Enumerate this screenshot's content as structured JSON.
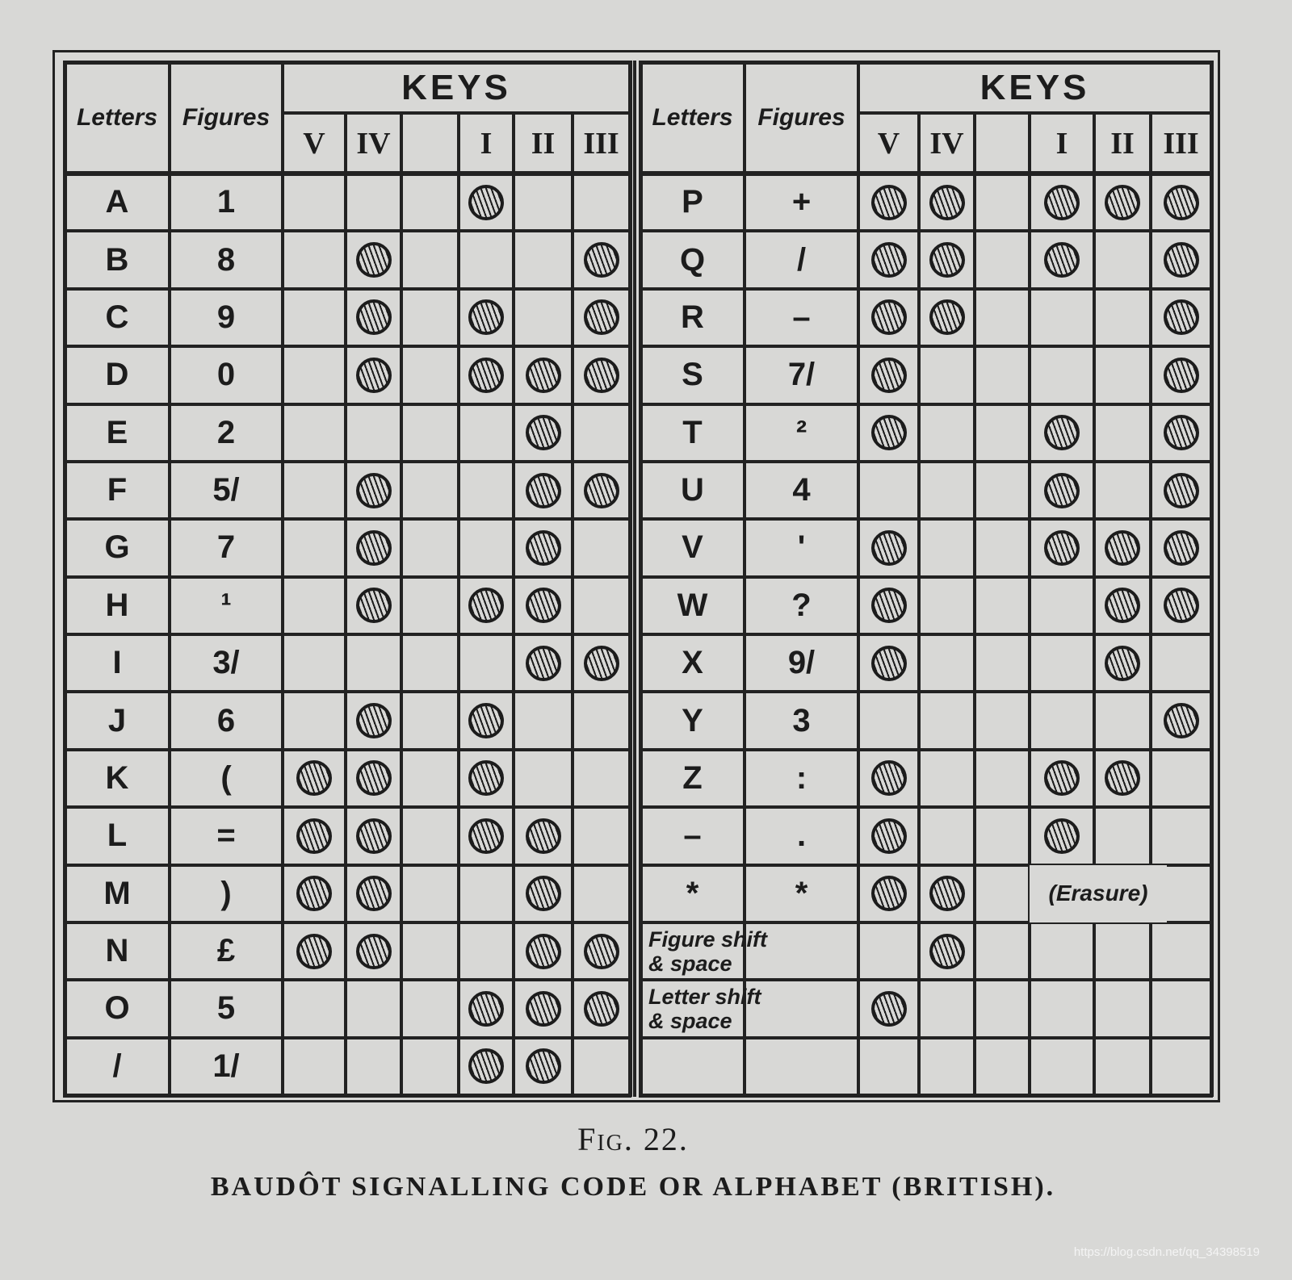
{
  "figure_label": "Fig. 22.",
  "caption": "BAUDÔT SIGNALLING CODE OR ALPHABET (BRITISH).",
  "watermark": "https://blog.csdn.net/qq_34398519",
  "header": {
    "letters": "Letters",
    "figures": "Figures",
    "keys": "KEYS",
    "key_columns": [
      "V",
      "IV",
      "",
      "I",
      "II",
      "III"
    ]
  },
  "left_rows": [
    {
      "letter": "A",
      "figure": "1",
      "punched": [
        "I"
      ]
    },
    {
      "letter": "B",
      "figure": "8",
      "punched": [
        "IV",
        "III"
      ]
    },
    {
      "letter": "C",
      "figure": "9",
      "punched": [
        "IV",
        "I",
        "III"
      ]
    },
    {
      "letter": "D",
      "figure": "0",
      "punched": [
        "IV",
        "I",
        "II",
        "III"
      ]
    },
    {
      "letter": "E",
      "figure": "2",
      "punched": [
        "II"
      ]
    },
    {
      "letter": "F",
      "figure": "5/",
      "punched": [
        "IV",
        "II",
        "III"
      ]
    },
    {
      "letter": "G",
      "figure": "7",
      "punched": [
        "IV",
        "II"
      ]
    },
    {
      "letter": "H",
      "figure": "¹",
      "punched": [
        "IV",
        "I",
        "II"
      ]
    },
    {
      "letter": "I",
      "figure": "3/",
      "punched": [
        "II",
        "III"
      ]
    },
    {
      "letter": "J",
      "figure": "6",
      "punched": [
        "IV",
        "I"
      ]
    },
    {
      "letter": "K",
      "figure": "(",
      "punched": [
        "V",
        "IV",
        "I"
      ]
    },
    {
      "letter": "L",
      "figure": "=",
      "punched": [
        "V",
        "IV",
        "I",
        "II"
      ]
    },
    {
      "letter": "M",
      "figure": ")",
      "punched": [
        "V",
        "IV",
        "II"
      ]
    },
    {
      "letter": "N",
      "figure": "£",
      "punched": [
        "V",
        "IV",
        "II",
        "III"
      ]
    },
    {
      "letter": "O",
      "figure": "5",
      "punched": [
        "I",
        "II",
        "III"
      ]
    },
    {
      "letter": "/",
      "figure": "1/",
      "punched": [
        "I",
        "II"
      ]
    }
  ],
  "right_rows": [
    {
      "letter": "P",
      "figure": "+",
      "punched": [
        "V",
        "IV",
        "I",
        "II",
        "III"
      ]
    },
    {
      "letter": "Q",
      "figure": "/",
      "punched": [
        "V",
        "IV",
        "I",
        "III"
      ]
    },
    {
      "letter": "R",
      "figure": "–",
      "punched": [
        "V",
        "IV",
        "III"
      ]
    },
    {
      "letter": "S",
      "figure": "7/",
      "punched": [
        "V",
        "III"
      ]
    },
    {
      "letter": "T",
      "figure": "²",
      "punched": [
        "V",
        "I",
        "III"
      ]
    },
    {
      "letter": "U",
      "figure": "4",
      "punched": [
        "I",
        "III"
      ]
    },
    {
      "letter": "V",
      "figure": "'",
      "punched": [
        "V",
        "I",
        "II",
        "III"
      ]
    },
    {
      "letter": "W",
      "figure": "?",
      "punched": [
        "V",
        "II",
        "III"
      ]
    },
    {
      "letter": "X",
      "figure": "9/",
      "punched": [
        "V",
        "II"
      ]
    },
    {
      "letter": "Y",
      "figure": "3",
      "punched": [
        "III"
      ]
    },
    {
      "letter": "Z",
      "figure": ":",
      "punched": [
        "V",
        "I",
        "II"
      ]
    },
    {
      "letter": "–",
      "figure": ".",
      "punched": [
        "V",
        "I"
      ]
    },
    {
      "letter": "*",
      "figure": "*",
      "punched": [
        "V",
        "IV"
      ],
      "note": "(Erasure)"
    },
    {
      "shift_label": "Figure shift\n& space",
      "punched": [
        "IV"
      ]
    },
    {
      "shift_label": "Letter shift\n& space",
      "punched": [
        "V"
      ]
    },
    {
      "letter": "",
      "figure": "",
      "punched": []
    }
  ]
}
